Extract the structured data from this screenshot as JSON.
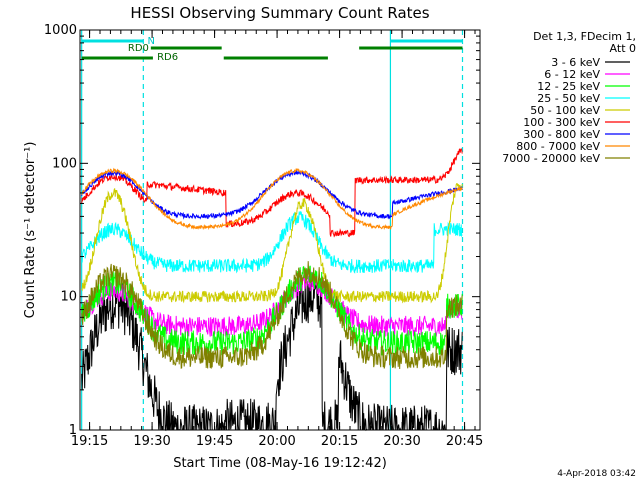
{
  "chart_data": {
    "type": "line",
    "title": "HESSI Observing Summary Count Rates",
    "xlabel": "Start Time (08-May-16 19:12:42)",
    "ylabel": "Count Rate (s⁻¹ detector⁻¹)",
    "y_scale": "log",
    "ylim": [
      1,
      1000
    ],
    "xlim_minutes": [
      0,
      80
    ],
    "y_tick_labels": [
      "1",
      "10",
      "100",
      "1000"
    ],
    "x_tick_labels": [
      "19:15",
      "19:30",
      "19:45",
      "20:00",
      "20:15",
      "20:30",
      "20:45"
    ],
    "x_tick_minutes": [
      2.3,
      17.3,
      32.3,
      47.3,
      62.3,
      77.3,
      92.3
    ],
    "legend_header": [
      "Det 1,3, FDecim 1,",
      "Att 0"
    ],
    "timestamp": "4-Apr-2018 03:42",
    "annotations": {
      "N": "N",
      "RD0": "RD0",
      "RD6": "RD6"
    },
    "series": [
      {
        "name": "3 - 6 keV",
        "color": "#000000"
      },
      {
        "name": "6 - 12 keV",
        "color": "#ff00ff"
      },
      {
        "name": "12 - 25 keV",
        "color": "#00ff00"
      },
      {
        "name": "25 - 50 keV",
        "color": "#00ffff"
      },
      {
        "name": "50 - 100 keV",
        "color": "#cccc00"
      },
      {
        "name": "100 - 300 keV",
        "color": "#ff0000"
      },
      {
        "name": "300 - 800 keV",
        "color": "#0000ff"
      },
      {
        "name": "800 - 7000 keV",
        "color": "#ff8800"
      },
      {
        "name": "7000 - 20000 keV",
        "color": "#808000"
      }
    ]
  }
}
